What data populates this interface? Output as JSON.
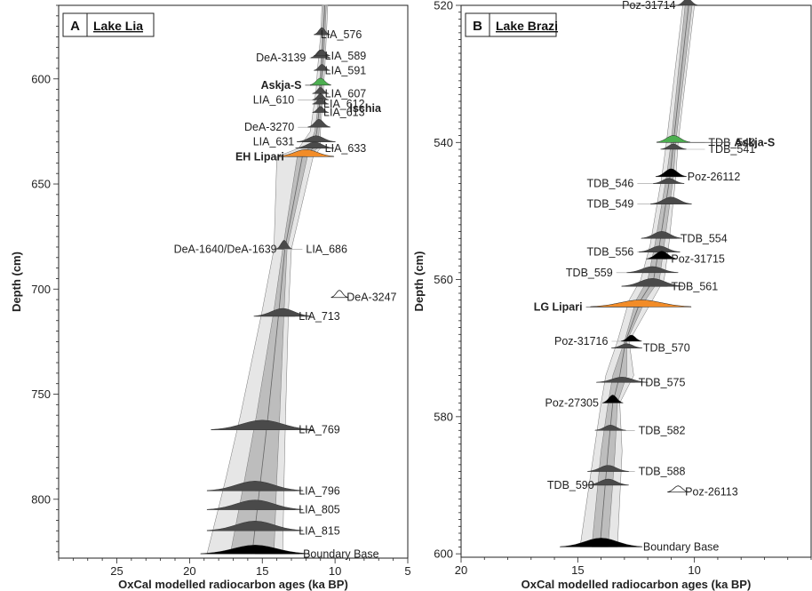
{
  "figure": {
    "colors": {
      "pdf": "#4a4a4a",
      "tephra": "#f28c28",
      "askja": "#4caf50",
      "envelope_outer": "#e6e6e6",
      "envelope_inner": "#bdbdbd",
      "envelope_core": "#8a8a8a"
    }
  },
  "chart_data": [
    {
      "type": "line",
      "panel_letter": "A",
      "title": "Lake Lia",
      "xlabel": "OxCal modelled radiocarbon ages (ka BP)",
      "ylabel": "Depth (cm)",
      "xlim": [
        29,
        5
      ],
      "ylim": [
        828,
        565
      ],
      "xticks": [
        25,
        20,
        15,
        10,
        5
      ],
      "yticks": [
        600,
        650,
        700,
        750,
        800
      ],
      "model": {
        "depth": [
          565,
          580,
          595,
          605,
          615,
          625,
          633,
          637,
          681,
          710,
          760,
          790,
          826
        ],
        "outer_old": [
          10.9,
          11.0,
          11.2,
          11.3,
          11.5,
          11.7,
          12.5,
          14.0,
          14.2,
          15.0,
          16.5,
          17.5,
          18.8
        ],
        "outer_young": [
          10.5,
          10.6,
          10.7,
          10.8,
          10.9,
          11.0,
          11.0,
          11.5,
          13.0,
          13.2,
          13.4,
          13.5,
          13.6
        ],
        "inner_old": [
          10.8,
          10.9,
          11.0,
          11.1,
          11.2,
          11.4,
          11.8,
          12.6,
          13.6,
          14.2,
          15.4,
          16.2,
          17.2
        ],
        "inner_young": [
          10.6,
          10.7,
          10.8,
          10.9,
          11.0,
          11.1,
          11.2,
          11.9,
          13.3,
          13.5,
          13.8,
          14.0,
          14.2
        ]
      },
      "samples": [
        {
          "name": "LIA_576",
          "depth": 579,
          "age": 10.9,
          "side": "right",
          "label_x": 11.0,
          "pdf_h": 8,
          "pdf_w": 0.25
        },
        {
          "name": "DeA-3139",
          "depth": 590,
          "age": 11.0,
          "side": "left",
          "label_x": 12.0,
          "pdf_h": 9,
          "pdf_w": 0.3
        },
        {
          "name": "LIA_589",
          "depth": 589,
          "age": 10.9,
          "side": "right",
          "label_x": 10.7,
          "pdf_h": 7,
          "pdf_w": 0.25
        },
        {
          "name": "LIA_591",
          "depth": 596,
          "age": 10.9,
          "side": "right",
          "label_x": 10.7,
          "pdf_h": 7,
          "pdf_w": 0.25
        },
        {
          "name": "LIA_607",
          "depth": 607,
          "age": 11.0,
          "side": "right",
          "label_x": 10.7,
          "pdf_h": 7,
          "pdf_w": 0.25
        },
        {
          "name": "LIA_610",
          "depth": 610,
          "age": 11.0,
          "side": "left",
          "label_x": 12.8,
          "pdf_h": 7,
          "pdf_w": 0.25
        },
        {
          "name": "LIA_612",
          "depth": 612,
          "age": 11.0,
          "side": "right",
          "label_x": 10.8,
          "pdf_h": 7,
          "pdf_w": 0.25
        },
        {
          "name": "LIA_613",
          "depth": 616,
          "age": 11.0,
          "side": "right",
          "label_x": 10.8,
          "pdf_h": 7,
          "pdf_w": 0.25
        },
        {
          "name": "DeA-3270",
          "depth": 623,
          "age": 11.1,
          "side": "left",
          "label_x": 12.8,
          "pdf_h": 9,
          "pdf_w": 0.35
        },
        {
          "name": "LIA_631",
          "depth": 630,
          "age": 11.3,
          "side": "left",
          "label_x": 12.8,
          "pdf_h": 7,
          "pdf_w": 0.6
        },
        {
          "name": "LIA_633",
          "depth": 633,
          "age": 11.4,
          "side": "right",
          "label_x": 10.7,
          "pdf_h": 7,
          "pdf_w": 0.6
        },
        {
          "name": "DeA-1640/DeA-1639",
          "depth": 681,
          "age": 13.5,
          "side": "left",
          "label_x": 14.0,
          "pdf_h": 10,
          "pdf_w": 0.25
        },
        {
          "name": "LIA_686",
          "depth": 681,
          "age": 13.5,
          "side": "right",
          "label_x": 12.0,
          "pdf_h": 0,
          "pdf_w": 0.0
        },
        {
          "name": "DeA-3247",
          "depth": 704,
          "age": 9.7,
          "side": "right",
          "label_x": 9.2,
          "pdf_h": 8,
          "pdf_w": 0.25,
          "outlier": true
        },
        {
          "name": "LIA_713",
          "depth": 713,
          "age": 13.6,
          "side": "right",
          "label_x": 12.5,
          "pdf_h": 9,
          "pdf_w": 0.9
        },
        {
          "name": "LIA_769",
          "depth": 767,
          "age": 15.0,
          "side": "right",
          "label_x": 12.5,
          "pdf_h": 11,
          "pdf_w": 1.6
        },
        {
          "name": "LIA_796",
          "depth": 796,
          "age": 15.5,
          "side": "right",
          "label_x": 12.5,
          "pdf_h": 11,
          "pdf_w": 1.5
        },
        {
          "name": "LIA_805",
          "depth": 805,
          "age": 15.5,
          "side": "right",
          "label_x": 12.5,
          "pdf_h": 11,
          "pdf_w": 1.5
        },
        {
          "name": "LIA_815",
          "depth": 815,
          "age": 15.5,
          "side": "right",
          "label_x": 12.5,
          "pdf_h": 11,
          "pdf_w": 1.5
        },
        {
          "name": "Boundary Base",
          "depth": 826,
          "age": 15.5,
          "side": "right",
          "label_x": 12.2,
          "pdf_h": 10,
          "pdf_w": 1.7,
          "black": true
        }
      ],
      "tephras": [
        {
          "name": "Askja-S",
          "depth": 603,
          "age": 11.0,
          "side": "left",
          "label_x": 12.3,
          "color": "#4caf50",
          "pdf_w": 0.3
        },
        {
          "name": "Ischia",
          "depth": 614,
          "age": 11.0,
          "side": "right",
          "label_x": 9.0,
          "color": null,
          "pdf_w": 0
        },
        {
          "name": "EH Lipari",
          "depth": 637,
          "age": 12.0,
          "side": "left",
          "label_x": 13.5,
          "color": "#f28c28",
          "pdf_w": 0.8
        }
      ]
    },
    {
      "type": "line",
      "panel_letter": "B",
      "title": "Lake Brazi",
      "xlabel": "OxCal modelled radiocarbon ages (ka BP)",
      "ylabel": "Depth (cm)",
      "xlim": [
        20,
        5
      ],
      "ylim": [
        600.5,
        520
      ],
      "xticks": [
        20,
        15,
        10
      ],
      "yticks": [
        520,
        540,
        560,
        580,
        600
      ],
      "model": {
        "depth": [
          520,
          540,
          545,
          555,
          560,
          563,
          569,
          574,
          578,
          585,
          599
        ],
        "outer_old": [
          10.5,
          11.2,
          11.4,
          11.9,
          12.3,
          12.8,
          13.3,
          13.8,
          14.0,
          14.3,
          14.9
        ],
        "outer_young": [
          10.0,
          10.7,
          10.8,
          11.1,
          11.3,
          11.8,
          12.8,
          12.6,
          13.2,
          13.1,
          13.3
        ],
        "inner_old": [
          10.4,
          11.0,
          11.2,
          11.7,
          12.0,
          12.5,
          13.0,
          13.5,
          13.7,
          14.0,
          14.4
        ],
        "inner_young": [
          10.1,
          10.8,
          10.9,
          11.3,
          11.5,
          12.1,
          12.9,
          12.9,
          13.3,
          13.4,
          13.7
        ]
      },
      "samples": [
        {
          "name": "Poz-31714",
          "depth": 520,
          "age": 10.3,
          "side": "left",
          "label_x": 10.8,
          "pdf_h": 8,
          "pdf_w": 0.2
        },
        {
          "name": "TDB_540",
          "depth": 540,
          "age": 10.9,
          "side": "right",
          "label_x": 9.4,
          "pdf_h": 6,
          "pdf_w": 0.25
        },
        {
          "name": "TDB_541",
          "depth": 541,
          "age": 10.9,
          "side": "right",
          "label_x": 9.4,
          "pdf_h": 6,
          "pdf_w": 0.25
        },
        {
          "name": "Poz-26112",
          "depth": 545,
          "age": 11.0,
          "side": "right",
          "label_x": 10.3,
          "pdf_h": 9,
          "pdf_w": 0.3,
          "black": true
        },
        {
          "name": "TDB_546",
          "depth": 546,
          "age": 11.1,
          "side": "left",
          "label_x": 12.6,
          "pdf_h": 6,
          "pdf_w": 0.3
        },
        {
          "name": "TDB_549",
          "depth": 549,
          "age": 11.0,
          "side": "left",
          "label_x": 12.6,
          "pdf_h": 8,
          "pdf_w": 0.4
        },
        {
          "name": "TDB_554",
          "depth": 554,
          "age": 11.4,
          "side": "right",
          "label_x": 10.6,
          "pdf_h": 8,
          "pdf_w": 0.4
        },
        {
          "name": "TDB_556",
          "depth": 556,
          "age": 11.5,
          "side": "left",
          "label_x": 12.6,
          "pdf_h": 7,
          "pdf_w": 0.4
        },
        {
          "name": "Poz-31715",
          "depth": 557,
          "age": 11.4,
          "side": "right",
          "label_x": 11.0,
          "pdf_h": 9,
          "pdf_w": 0.3,
          "black": true
        },
        {
          "name": "TDB_559",
          "depth": 559,
          "age": 11.8,
          "side": "left",
          "label_x": 13.5,
          "pdf_h": 7,
          "pdf_w": 0.5
        },
        {
          "name": "TDB_561",
          "depth": 561,
          "age": 11.8,
          "side": "right",
          "label_x": 11.0,
          "pdf_h": 9,
          "pdf_w": 0.6
        },
        {
          "name": "Poz-31716",
          "depth": 569,
          "age": 12.7,
          "side": "left",
          "label_x": 13.7,
          "pdf_h": 7,
          "pdf_w": 0.2,
          "black": true
        },
        {
          "name": "TDB_570",
          "depth": 570,
          "age": 12.9,
          "side": "right",
          "label_x": 12.2,
          "pdf_h": 5,
          "pdf_w": 0.3
        },
        {
          "name": "TDB_575",
          "depth": 575,
          "age": 13.1,
          "side": "right",
          "label_x": 12.4,
          "pdf_h": 6,
          "pdf_w": 0.5
        },
        {
          "name": "Poz-27305",
          "depth": 578,
          "age": 13.5,
          "side": "left",
          "label_x": 14.1,
          "pdf_h": 9,
          "pdf_w": 0.2,
          "black": true
        },
        {
          "name": "TDB_582",
          "depth": 582,
          "age": 13.6,
          "side": "right",
          "label_x": 12.4,
          "pdf_h": 6,
          "pdf_w": 0.3
        },
        {
          "name": "TDB_588",
          "depth": 588,
          "age": 13.7,
          "side": "right",
          "label_x": 12.4,
          "pdf_h": 7,
          "pdf_w": 0.4
        },
        {
          "name": "TDB_590",
          "depth": 590,
          "age": 13.7,
          "side": "left",
          "label_x": 14.3,
          "pdf_h": 7,
          "pdf_w": 0.4
        },
        {
          "name": "Poz-26113",
          "depth": 591,
          "age": 10.7,
          "side": "right",
          "label_x": 10.4,
          "pdf_h": 7,
          "pdf_w": 0.2,
          "outlier": true
        },
        {
          "name": "Boundary Base",
          "depth": 599,
          "age": 14.0,
          "side": "right",
          "label_x": 12.2,
          "pdf_h": 10,
          "pdf_w": 0.8,
          "black": true
        }
      ],
      "tephras": [
        {
          "name": "Askja-S",
          "depth": 540,
          "age": 10.9,
          "side": "right",
          "label_x": 8.3,
          "color": "#4caf50",
          "pdf_w": 0.3
        },
        {
          "name": "LG Lipari",
          "depth": 564,
          "age": 12.3,
          "side": "left",
          "label_x": 14.8,
          "color": "#f28c28",
          "pdf_w": 0.9
        }
      ]
    }
  ]
}
